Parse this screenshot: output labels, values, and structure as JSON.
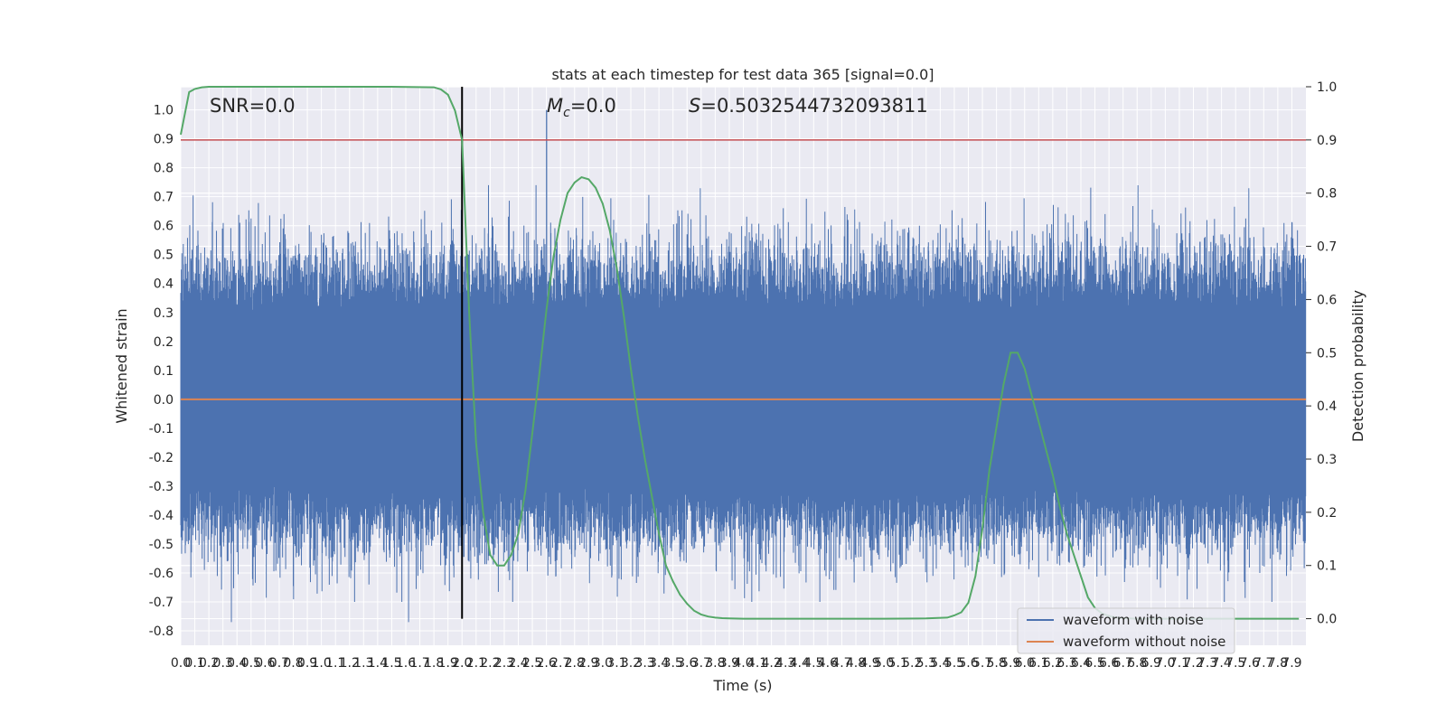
{
  "chart_data": {
    "type": "line",
    "title": "stats at each timestep for test data 365 [signal=0.0]",
    "xlabel": "Time (s)",
    "ylabel": "Whitened strain",
    "y2label": "Detection probability",
    "xlim": [
      0.0,
      8.0
    ],
    "ylim": [
      -0.85,
      1.08
    ],
    "y2lim": [
      -0.05,
      1.0
    ],
    "xticks": [
      "0.0",
      "0.1",
      "0.2",
      "0.3",
      "0.4",
      "0.5",
      "0.6",
      "0.7",
      "0.8",
      "0.9",
      "1.0",
      "1.1",
      "1.2",
      "1.3",
      "1.4",
      "1.5",
      "1.6",
      "1.7",
      "1.8",
      "1.9",
      "2.0",
      "2.1",
      "2.2",
      "2.3",
      "2.4",
      "2.5",
      "2.6",
      "2.7",
      "2.8",
      "2.9",
      "3.0",
      "3.1",
      "3.2",
      "3.3",
      "3.4",
      "3.5",
      "3.6",
      "3.7",
      "3.8",
      "3.9",
      "4.0",
      "4.1",
      "4.2",
      "4.3",
      "4.4",
      "4.5",
      "4.6",
      "4.7",
      "4.8",
      "4.9",
      "5.0",
      "5.1",
      "5.2",
      "5.3",
      "5.4",
      "5.5",
      "5.6",
      "5.7",
      "5.8",
      "5.9",
      "6.0",
      "6.1",
      "6.2",
      "6.3",
      "6.4",
      "6.5",
      "6.6",
      "6.7",
      "6.8",
      "6.9",
      "7.0",
      "7.1",
      "7.2",
      "7.3",
      "7.4",
      "7.5",
      "7.6",
      "7.7",
      "7.8",
      "7.9"
    ],
    "yticks": [
      "-0.8",
      "-0.7",
      "-0.6",
      "-0.5",
      "-0.4",
      "-0.3",
      "-0.2",
      "-0.1",
      "0.0",
      "0.1",
      "0.2",
      "0.3",
      "0.4",
      "0.5",
      "0.6",
      "0.7",
      "0.8",
      "0.9",
      "1.0"
    ],
    "y2ticks": [
      "0.0",
      "0.1",
      "0.2",
      "0.3",
      "0.4",
      "0.5",
      "0.6",
      "0.7",
      "0.8",
      "0.9",
      "1.0"
    ],
    "annotations": {
      "snr": "SNR=0.0",
      "mc_symbol": "M",
      "mc_sub": "c",
      "mc_value": "=0.0",
      "s_symbol": "S",
      "s_value": "=0.5032544732093811"
    },
    "threshold": 0.9,
    "marker_time": 2.0,
    "series": [
      {
        "name": "waveform with noise",
        "color": "#4c72b0",
        "description_type": "noise",
        "noise": {
          "samples": 4000,
          "band": 0.3,
          "extreme_peak_t": 2.6,
          "extreme_peak_y": 1.0,
          "extreme_low_y": -0.77
        }
      },
      {
        "name": "waveform without noise",
        "color": "#dd8452",
        "x": [
          0.0,
          8.0
        ],
        "y": [
          0.0,
          0.0
        ]
      },
      {
        "name": "detection probability",
        "color": "#55a868",
        "axis": "right",
        "x": [
          0.0,
          0.06,
          0.1,
          0.15,
          0.2,
          0.5,
          1.0,
          1.5,
          1.8,
          1.85,
          1.9,
          1.95,
          2.0,
          2.05,
          2.1,
          2.15,
          2.2,
          2.25,
          2.3,
          2.35,
          2.4,
          2.45,
          2.5,
          2.55,
          2.6,
          2.65,
          2.7,
          2.75,
          2.8,
          2.85,
          2.9,
          2.95,
          3.0,
          3.05,
          3.1,
          3.15,
          3.2,
          3.25,
          3.3,
          3.35,
          3.4,
          3.45,
          3.5,
          3.55,
          3.6,
          3.65,
          3.7,
          3.75,
          3.8,
          3.85,
          3.9,
          4.0,
          4.5,
          5.0,
          5.3,
          5.45,
          5.5,
          5.55,
          5.6,
          5.65,
          5.7,
          5.75,
          5.8,
          5.85,
          5.9,
          5.95,
          6.0,
          6.05,
          6.1,
          6.15,
          6.2,
          6.25,
          6.3,
          6.35,
          6.4,
          6.45,
          6.5,
          6.55,
          6.6,
          6.65,
          6.7,
          6.75,
          6.8,
          6.9,
          7.0,
          7.5,
          7.95
        ],
        "y": [
          0.91,
          0.99,
          0.996,
          0.999,
          1.0,
          1.0,
          1.0,
          1.0,
          0.999,
          0.995,
          0.985,
          0.955,
          0.9,
          0.58,
          0.33,
          0.2,
          0.12,
          0.1,
          0.1,
          0.12,
          0.16,
          0.24,
          0.35,
          0.46,
          0.58,
          0.68,
          0.75,
          0.8,
          0.82,
          0.83,
          0.826,
          0.81,
          0.78,
          0.73,
          0.66,
          0.57,
          0.47,
          0.38,
          0.3,
          0.23,
          0.16,
          0.1,
          0.07,
          0.045,
          0.028,
          0.015,
          0.008,
          0.004,
          0.002,
          0.001,
          0.0005,
          0.0,
          0.0,
          0.0,
          0.0005,
          0.002,
          0.006,
          0.012,
          0.03,
          0.08,
          0.17,
          0.28,
          0.36,
          0.44,
          0.5,
          0.5,
          0.47,
          0.42,
          0.37,
          0.32,
          0.27,
          0.21,
          0.16,
          0.12,
          0.08,
          0.04,
          0.02,
          0.01,
          0.005,
          0.002,
          0.001,
          0.0005,
          0.0,
          0.0,
          0.0,
          0.0,
          0.0
        ]
      }
    ],
    "legend": {
      "placement": "lower-right",
      "entries": [
        "waveform with noise",
        "waveform without noise"
      ]
    },
    "grid": true,
    "colors": {
      "background": "#eaeaf2",
      "grid": "#ffffff",
      "threshold": "#c44e52",
      "marker": "#000000"
    }
  }
}
